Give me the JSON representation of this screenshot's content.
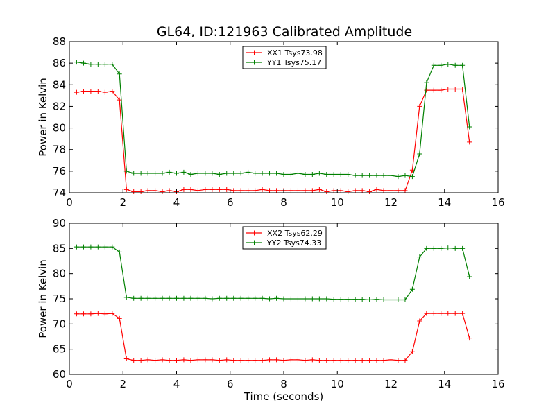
{
  "figure_title": "GL64, ID:121963 Calibrated Amplitude",
  "chart_data": [
    {
      "type": "line",
      "title": "GL64, ID:121963 Calibrated Amplitude",
      "xlabel": "",
      "ylabel": "Power in Kelvin",
      "xlim": [
        0,
        16
      ],
      "ylim": [
        74,
        88
      ],
      "xticks": [
        0,
        2,
        4,
        6,
        8,
        10,
        12,
        14,
        16
      ],
      "yticks": [
        74,
        76,
        78,
        80,
        82,
        84,
        86,
        88
      ],
      "grid": false,
      "legend_position": "top-center",
      "x": [
        0.27,
        0.53,
        0.8,
        1.07,
        1.33,
        1.6,
        1.87,
        2.13,
        2.4,
        2.67,
        2.93,
        3.2,
        3.47,
        3.73,
        4.0,
        4.27,
        4.53,
        4.8,
        5.07,
        5.33,
        5.6,
        5.87,
        6.13,
        6.4,
        6.67,
        6.93,
        7.2,
        7.47,
        7.73,
        8.0,
        8.27,
        8.53,
        8.8,
        9.07,
        9.33,
        9.6,
        9.87,
        10.13,
        10.4,
        10.67,
        10.93,
        11.2,
        11.47,
        11.73,
        12.0,
        12.27,
        12.53,
        12.8,
        13.07,
        13.33,
        13.6,
        13.87,
        14.13,
        14.4,
        14.67,
        14.93
      ],
      "series": [
        {
          "name": "XX1 Tsys73.98",
          "color": "#ff0000",
          "values": [
            83.3,
            83.4,
            83.4,
            83.4,
            83.3,
            83.4,
            82.6,
            74.3,
            74.1,
            74.1,
            74.2,
            74.2,
            74.1,
            74.2,
            74.1,
            74.3,
            74.3,
            74.2,
            74.3,
            74.3,
            74.3,
            74.3,
            74.2,
            74.2,
            74.2,
            74.2,
            74.3,
            74.2,
            74.2,
            74.2,
            74.2,
            74.2,
            74.2,
            74.2,
            74.3,
            74.1,
            74.2,
            74.2,
            74.1,
            74.2,
            74.2,
            74.1,
            74.3,
            74.2,
            74.2,
            74.2,
            74.2,
            76.1,
            82.0,
            83.5,
            83.5,
            83.5,
            83.6,
            83.6,
            83.6,
            78.7
          ]
        },
        {
          "name": "YY1 Tsys75.17",
          "color": "#008000",
          "values": [
            86.1,
            86.0,
            85.9,
            85.9,
            85.9,
            85.9,
            85.0,
            76.0,
            75.8,
            75.8,
            75.8,
            75.8,
            75.8,
            75.9,
            75.8,
            75.9,
            75.7,
            75.8,
            75.8,
            75.8,
            75.7,
            75.8,
            75.8,
            75.8,
            75.9,
            75.8,
            75.8,
            75.8,
            75.8,
            75.7,
            75.7,
            75.8,
            75.7,
            75.7,
            75.8,
            75.7,
            75.7,
            75.7,
            75.7,
            75.6,
            75.6,
            75.6,
            75.6,
            75.6,
            75.6,
            75.5,
            75.6,
            75.5,
            77.6,
            84.2,
            85.8,
            85.8,
            85.9,
            85.8,
            85.8,
            80.1
          ]
        }
      ]
    },
    {
      "type": "line",
      "title": "",
      "xlabel": "Time (seconds)",
      "ylabel": "Power in Kelvin",
      "xlim": [
        0,
        16
      ],
      "ylim": [
        60,
        90
      ],
      "xticks": [
        0,
        2,
        4,
        6,
        8,
        10,
        12,
        14,
        16
      ],
      "yticks": [
        60,
        65,
        70,
        75,
        80,
        85,
        90
      ],
      "grid": false,
      "legend_position": "top-center",
      "x": [
        0.27,
        0.53,
        0.8,
        1.07,
        1.33,
        1.6,
        1.87,
        2.13,
        2.4,
        2.67,
        2.93,
        3.2,
        3.47,
        3.73,
        4.0,
        4.27,
        4.53,
        4.8,
        5.07,
        5.33,
        5.6,
        5.87,
        6.13,
        6.4,
        6.67,
        6.93,
        7.2,
        7.47,
        7.73,
        8.0,
        8.27,
        8.53,
        8.8,
        9.07,
        9.33,
        9.6,
        9.87,
        10.13,
        10.4,
        10.67,
        10.93,
        11.2,
        11.47,
        11.73,
        12.0,
        12.27,
        12.53,
        12.8,
        13.07,
        13.33,
        13.6,
        13.87,
        14.13,
        14.4,
        14.67,
        14.93
      ],
      "series": [
        {
          "name": "XX2 Tsys62.29",
          "color": "#ff0000",
          "values": [
            72.0,
            72.0,
            72.0,
            72.1,
            72.0,
            72.1,
            71.1,
            63.1,
            62.8,
            62.8,
            62.9,
            62.8,
            62.9,
            62.8,
            62.8,
            62.9,
            62.8,
            62.9,
            62.9,
            62.9,
            62.8,
            62.9,
            62.8,
            62.8,
            62.8,
            62.8,
            62.8,
            62.9,
            62.9,
            62.8,
            62.9,
            62.9,
            62.8,
            62.9,
            62.8,
            62.8,
            62.8,
            62.8,
            62.8,
            62.8,
            62.8,
            62.8,
            62.8,
            62.8,
            62.9,
            62.8,
            62.8,
            64.5,
            70.6,
            72.1,
            72.1,
            72.1,
            72.1,
            72.1,
            72.1,
            67.2
          ]
        },
        {
          "name": "YY2 Tsys74.33",
          "color": "#008000",
          "values": [
            85.3,
            85.3,
            85.3,
            85.3,
            85.3,
            85.3,
            84.3,
            75.3,
            75.1,
            75.1,
            75.1,
            75.1,
            75.1,
            75.1,
            75.1,
            75.1,
            75.1,
            75.1,
            75.1,
            75.0,
            75.1,
            75.1,
            75.1,
            75.1,
            75.1,
            75.1,
            75.1,
            75.0,
            75.1,
            75.0,
            75.0,
            75.0,
            75.0,
            75.0,
            75.0,
            75.0,
            74.9,
            74.9,
            74.9,
            74.9,
            74.9,
            74.8,
            74.9,
            74.8,
            74.8,
            74.8,
            74.8,
            76.9,
            83.3,
            85.0,
            85.0,
            85.0,
            85.1,
            85.0,
            85.0,
            79.4
          ]
        }
      ]
    }
  ]
}
